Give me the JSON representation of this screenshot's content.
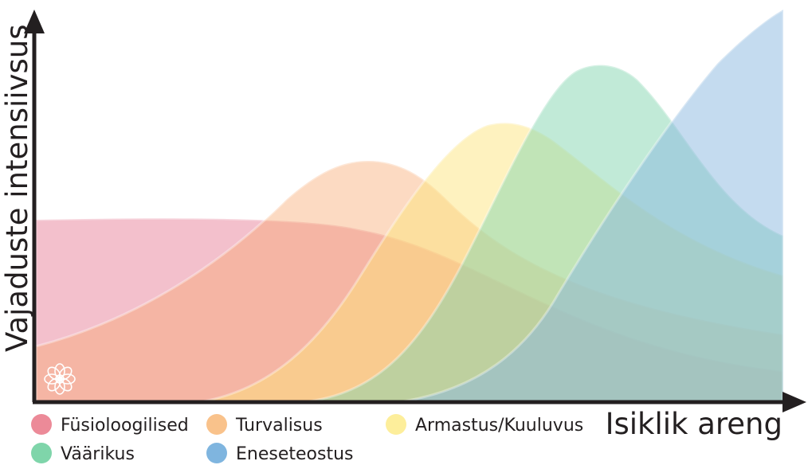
{
  "chart_data": {
    "type": "area",
    "xlabel": "Isiklik areng",
    "ylabel": "Vajaduste intensiivsus",
    "series": [
      {
        "name": "Füsioloogilised",
        "legend_color": "#ec8a98",
        "fill": "#e57c94",
        "fill_opacity": 0.48
      },
      {
        "name": "Turvalisus",
        "legend_color": "#f9c28b",
        "fill": "#f9a66d",
        "fill_opacity": 0.42
      },
      {
        "name": "Armastus/Kuuluvus",
        "legend_color": "#fdee9b",
        "fill": "#fde47a",
        "fill_opacity": 0.48
      },
      {
        "name": "Väärikus",
        "legend_color": "#7fd5aa",
        "fill": "#84d6b0",
        "fill_opacity": 0.5
      },
      {
        "name": "Eneseteostus",
        "legend_color": "#7fb5df",
        "fill": "#8ab7e0",
        "fill_opacity": 0.5
      }
    ]
  }
}
